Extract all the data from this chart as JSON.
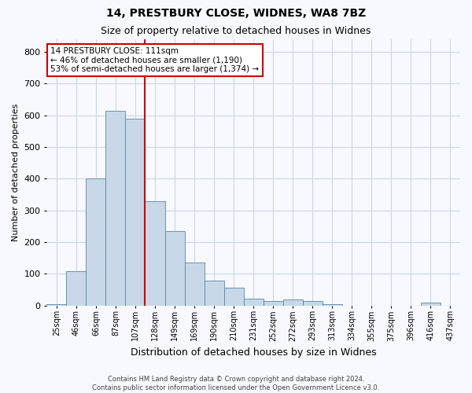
{
  "title1": "14, PRESTBURY CLOSE, WIDNES, WA8 7BZ",
  "title2": "Size of property relative to detached houses in Widnes",
  "xlabel": "Distribution of detached houses by size in Widnes",
  "ylabel": "Number of detached properties",
  "footer1": "Contains HM Land Registry data © Crown copyright and database right 2024.",
  "footer2": "Contains public sector information licensed under the Open Government Licence v3.0.",
  "annotation_line1": "14 PRESTBURY CLOSE: 111sqm",
  "annotation_line2": "← 46% of detached houses are smaller (1,190)",
  "annotation_line3": "53% of semi-detached houses are larger (1,374) →",
  "bar_color": "#c8d8e8",
  "bar_edge_color": "#5588aa",
  "marker_line_color": "#cc0000",
  "categories": [
    "25sqm",
    "46sqm",
    "66sqm",
    "87sqm",
    "107sqm",
    "128sqm",
    "149sqm",
    "169sqm",
    "190sqm",
    "210sqm",
    "231sqm",
    "252sqm",
    "272sqm",
    "293sqm",
    "313sqm",
    "334sqm",
    "355sqm",
    "375sqm",
    "396sqm",
    "416sqm",
    "437sqm"
  ],
  "values": [
    5,
    108,
    402,
    615,
    590,
    328,
    235,
    135,
    78,
    55,
    22,
    13,
    18,
    13,
    4,
    0,
    0,
    0,
    0,
    8,
    0
  ],
  "ylim_min": 0,
  "ylim_max": 840,
  "marker_bar_index": 4,
  "background_color": "#f8f8ff",
  "grid_color": "#c8d8e8",
  "annotation_box_color": "#ffffff",
  "annotation_box_edge_color": "#cc0000"
}
